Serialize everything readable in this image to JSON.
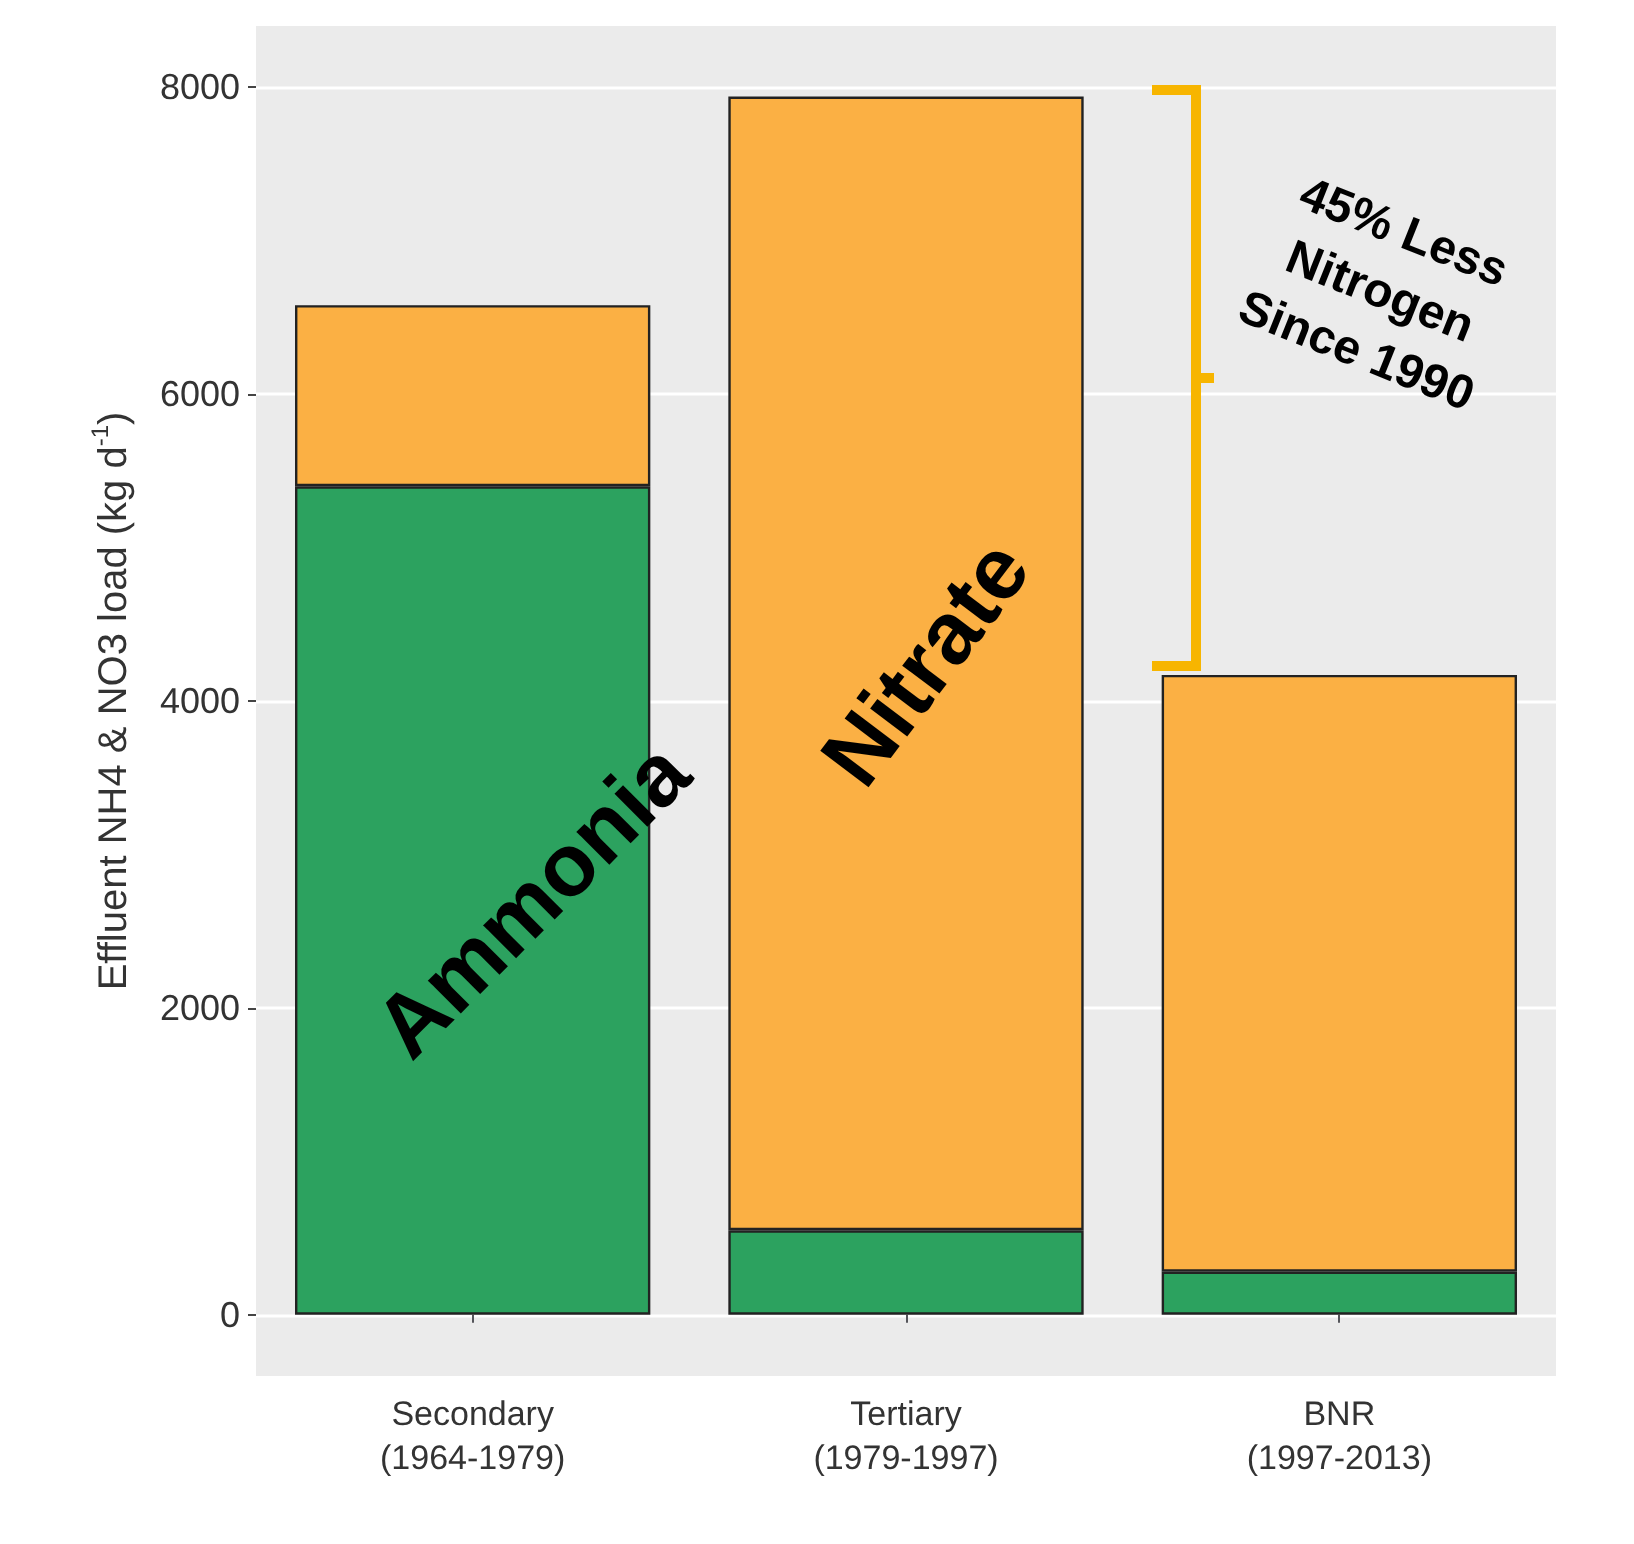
{
  "chart_data": {
    "type": "bar",
    "stacked": true,
    "ylabel": "Effluent NH4 & NO3 load (kg d$^{-1}$)",
    "categories": [
      "Secondary\n(1964-1979)",
      "Tertiary\n(1979-1997)",
      "BNR\n(1997-2013)"
    ],
    "series": [
      {
        "name": "Ammonia",
        "color": "#2ca25f",
        "values": [
          5400,
          550,
          280
        ]
      },
      {
        "name": "Nitrate",
        "color": "#fbb044",
        "values": [
          1180,
          7390,
          3890
        ]
      }
    ],
    "ylim": [
      -400,
      8400
    ],
    "yticks": [
      0,
      2000,
      4000,
      6000,
      8000
    ],
    "grid": "y",
    "legend": false,
    "annotations": [
      "45% Less\nNitrogen\nSince 1990"
    ]
  }
}
